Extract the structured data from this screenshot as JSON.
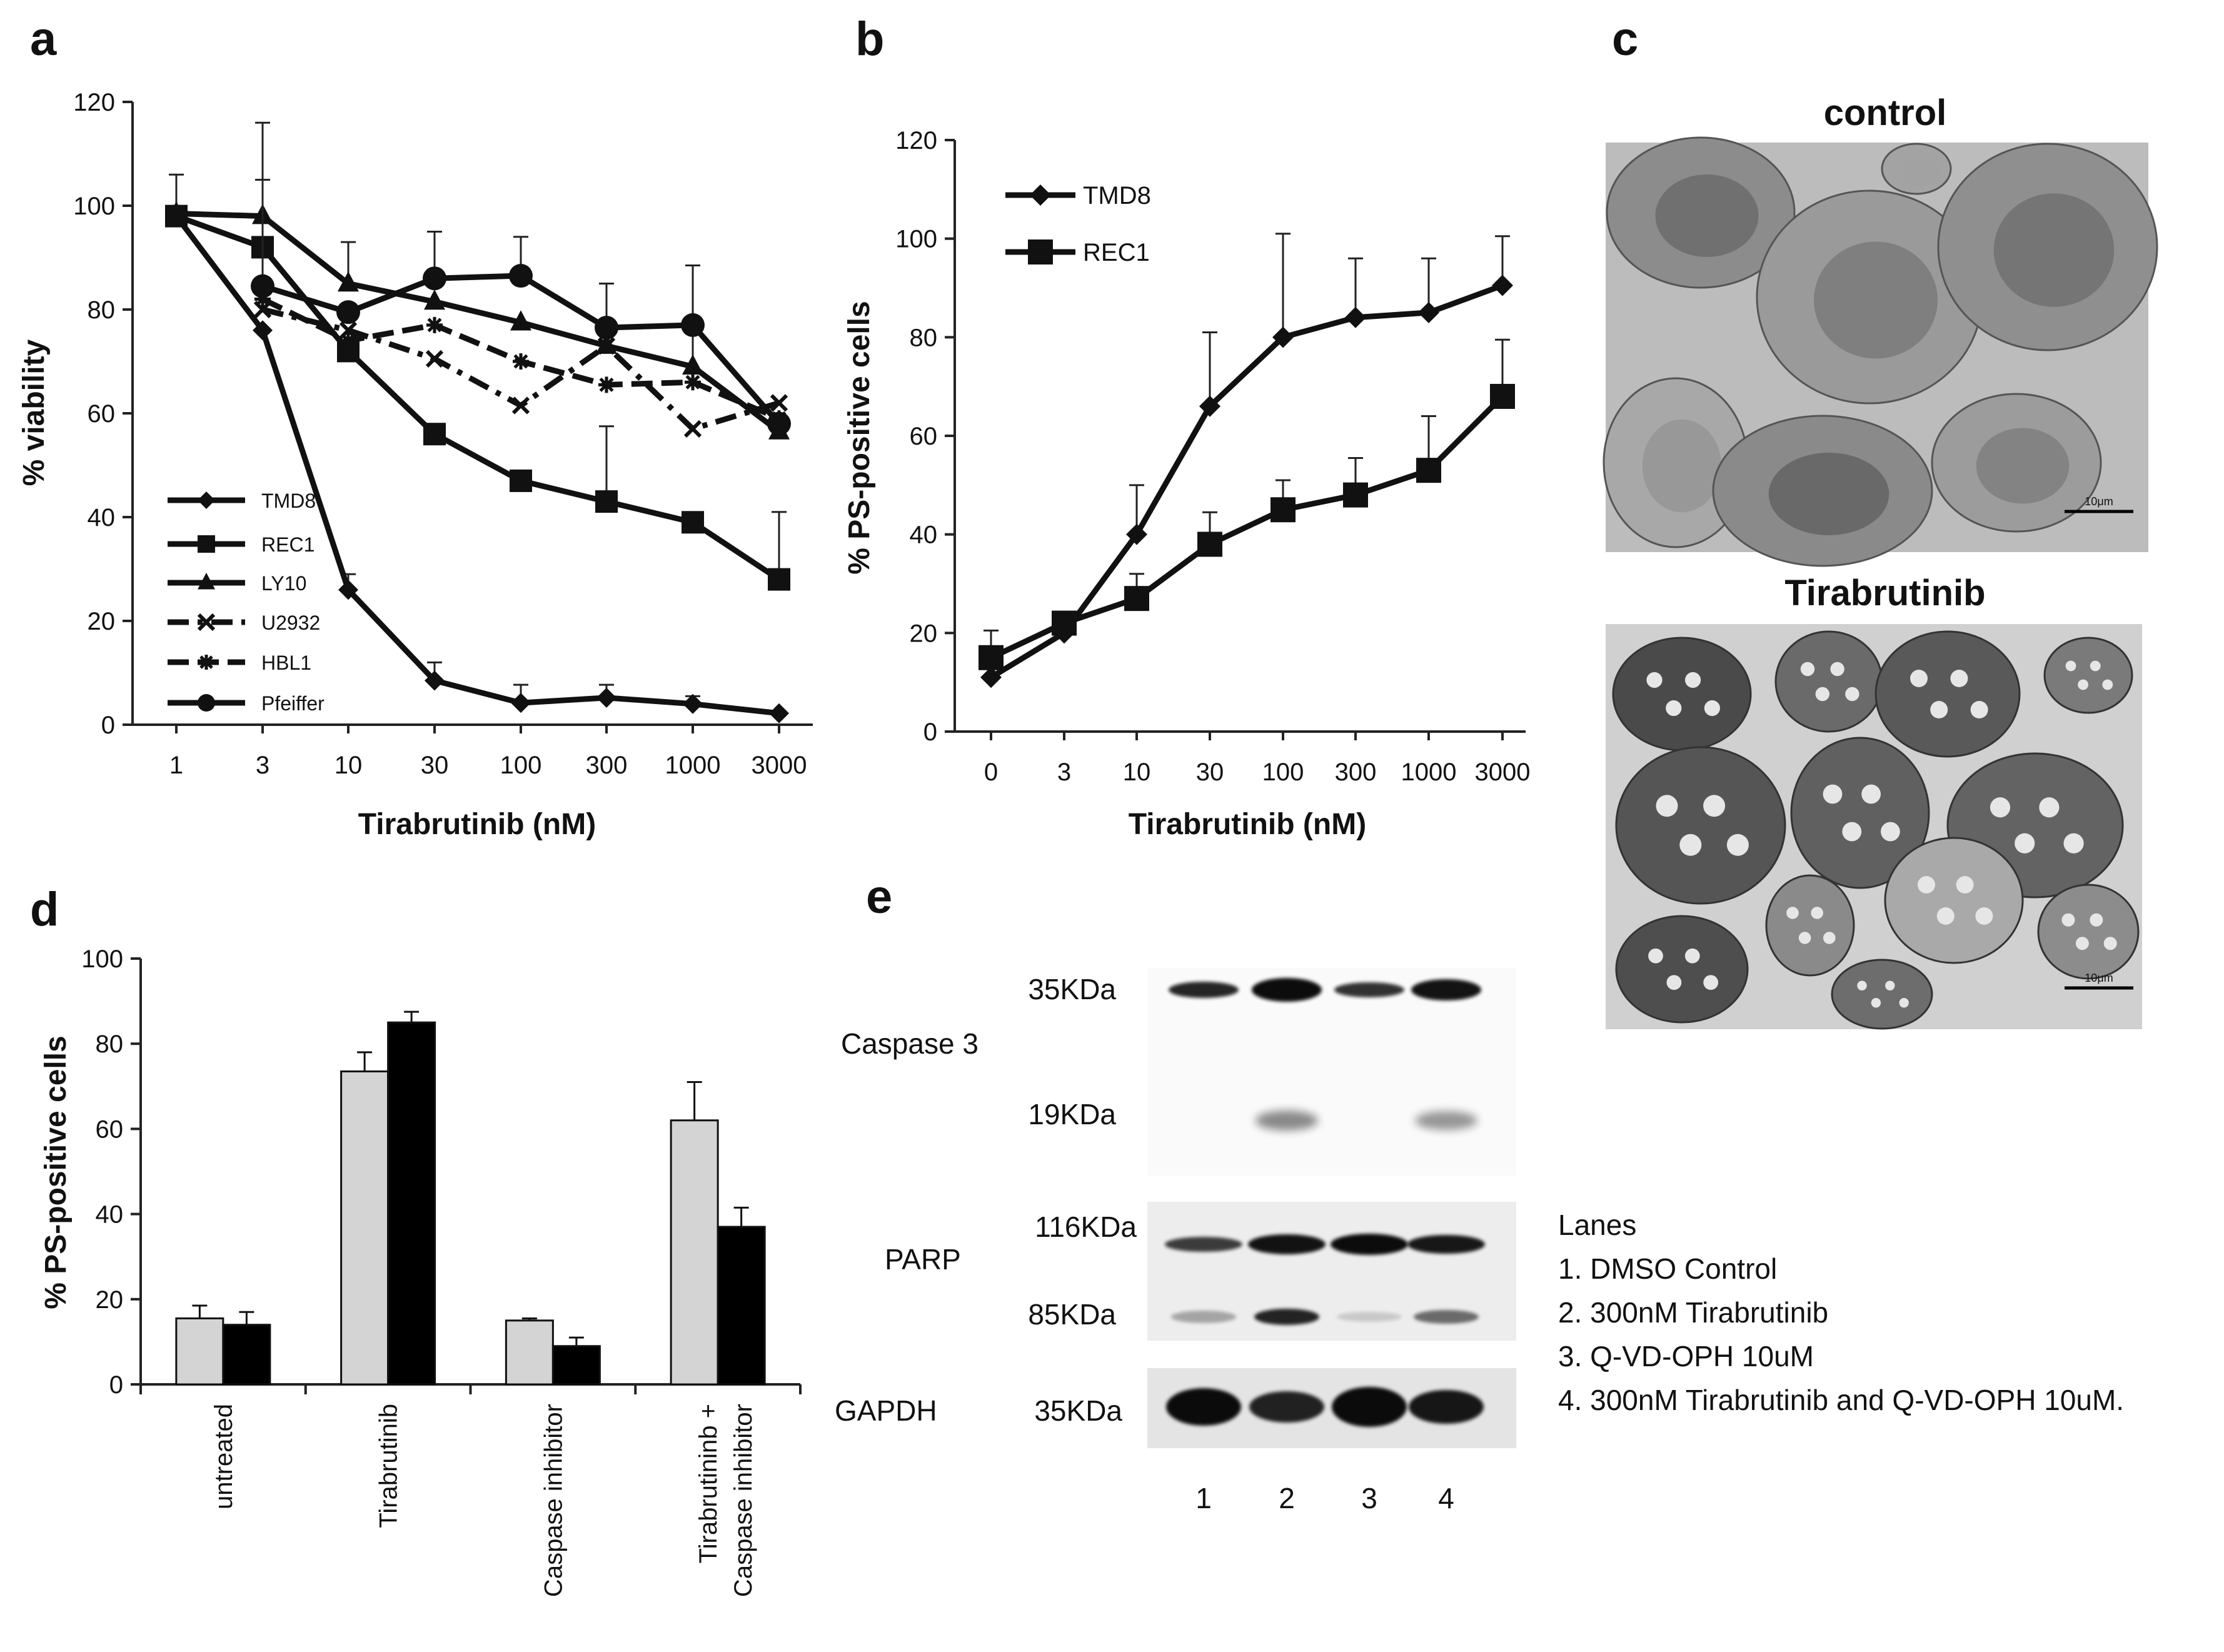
{
  "panel_labels": [
    "a",
    "b",
    "c",
    "d",
    "e"
  ],
  "chart_data": [
    {
      "id": "a",
      "type": "line",
      "categories": [
        "1",
        "3",
        "10",
        "30",
        "100",
        "300",
        "1000",
        "3000"
      ],
      "xlabel": "Tirabrutinib (nM)",
      "ylabel": "% viability",
      "ylim": [
        0,
        120
      ],
      "yticks": [
        0,
        20,
        40,
        60,
        80,
        100,
        120
      ],
      "legend_position": "bottom-left",
      "grid": false,
      "series": [
        {
          "name": "TMD8",
          "marker": "diamond",
          "dash": "solid",
          "x": [
            0,
            1,
            2,
            3,
            4,
            5,
            6,
            7
          ],
          "values": [
            98,
            76,
            26,
            8.5,
            4.2,
            5.2,
            4.0,
            2.2
          ],
          "err": [
            8,
            0,
            3,
            3.5,
            3.5,
            2.5,
            1.5,
            0
          ]
        },
        {
          "name": "REC1",
          "marker": "square",
          "dash": "solid",
          "x": [
            0,
            1,
            2,
            3,
            4,
            5,
            6,
            7
          ],
          "values": [
            98,
            92,
            72,
            56,
            47,
            43,
            39,
            28
          ],
          "err": [
            0,
            0,
            0,
            0,
            0,
            14.5,
            0,
            13
          ]
        },
        {
          "name": "LY10",
          "marker": "triangle",
          "dash": "solid",
          "x": [
            0,
            1,
            2,
            3,
            4,
            5,
            6,
            7
          ],
          "values": [
            98.5,
            98,
            85,
            81.5,
            77.5,
            73,
            69,
            56.5
          ],
          "err": [
            0,
            18,
            8,
            0,
            0,
            12,
            19.5,
            0
          ]
        },
        {
          "name": "U2932",
          "marker": "x",
          "dash": "dashdot",
          "x": [
            1,
            2,
            3,
            4,
            5,
            6,
            7
          ],
          "values": [
            80,
            76,
            70.5,
            61.5,
            73,
            57,
            62
          ],
          "err": [
            25,
            0,
            0,
            0,
            0,
            0,
            0
          ]
        },
        {
          "name": "HBL1",
          "marker": "star",
          "dash": "dash",
          "x": [
            1,
            2,
            3,
            4,
            5,
            6,
            7
          ],
          "values": [
            82,
            74,
            77,
            70,
            65.5,
            66,
            59
          ],
          "err": [
            0,
            0,
            0,
            0,
            0,
            0,
            0
          ]
        },
        {
          "name": "Pfeiffer",
          "marker": "circle",
          "dash": "solid",
          "x": [
            1,
            2,
            3,
            4,
            5,
            6,
            7
          ],
          "values": [
            84.5,
            79.5,
            86,
            86.5,
            76.5,
            77,
            58
          ],
          "err": [
            0,
            0,
            9,
            7.5,
            0,
            11.5,
            0
          ]
        }
      ]
    },
    {
      "id": "b",
      "type": "line",
      "categories": [
        "0",
        "3",
        "10",
        "30",
        "100",
        "300",
        "1000",
        "3000"
      ],
      "xlabel": "Tirabrutinib (nM)",
      "ylabel": "% PS-positive cells",
      "ylim": [
        0,
        120
      ],
      "yticks": [
        0,
        20,
        40,
        60,
        80,
        100,
        120
      ],
      "legend_position": "top-left",
      "grid": false,
      "series": [
        {
          "name": "TMD8",
          "marker": "diamond",
          "values": [
            11,
            20,
            40,
            66,
            80,
            84,
            85,
            90.5
          ],
          "err": [
            0,
            0,
            10,
            15,
            21,
            12,
            11,
            10
          ]
        },
        {
          "name": "REC1",
          "marker": "square",
          "values": [
            15,
            22,
            27,
            38,
            45,
            48,
            53,
            68
          ],
          "err": [
            5.5,
            0,
            5,
            6.5,
            6,
            7.5,
            11,
            11.5
          ]
        }
      ]
    },
    {
      "id": "d",
      "type": "bar",
      "categories": [
        "untreated",
        "Tirabrutinib",
        "Caspase inhibitor",
        "Tirabrutininb +\nCaspase inhibitor"
      ],
      "xlabel": "",
      "ylabel": "% PS-positive cells",
      "ylim": [
        0,
        100
      ],
      "yticks": [
        0,
        20,
        40,
        60,
        80,
        100
      ],
      "series": [
        {
          "color": "#d4d4d4",
          "values": [
            15.5,
            73.5,
            15,
            62
          ],
          "err": [
            3,
            4.5,
            0.5,
            9
          ]
        },
        {
          "color": "#000000",
          "values": [
            14,
            85,
            9,
            37
          ],
          "err": [
            3,
            2.5,
            2,
            4.5
          ]
        }
      ]
    }
  ],
  "micrographs": {
    "control_title": "control",
    "treated_title": "Tirabrutinib",
    "scale_bar": "10μm"
  },
  "blot": {
    "proteins": [
      "Caspase 3",
      "PARP",
      "GAPDH"
    ],
    "sizes": [
      "35KDa",
      "19KDa",
      "116KDa",
      "85KDa",
      "35KDa"
    ],
    "lane_numbers": [
      "1",
      "2",
      "3",
      "4"
    ],
    "legend": {
      "title": "Lanes",
      "items": [
        "1. DMSO Control",
        "2. 300nM Tirabrutinib",
        "3. Q-VD-OPH 10uM",
        "4. 300nM Tirabrutinib and Q-VD-OPH 10uM."
      ]
    }
  }
}
